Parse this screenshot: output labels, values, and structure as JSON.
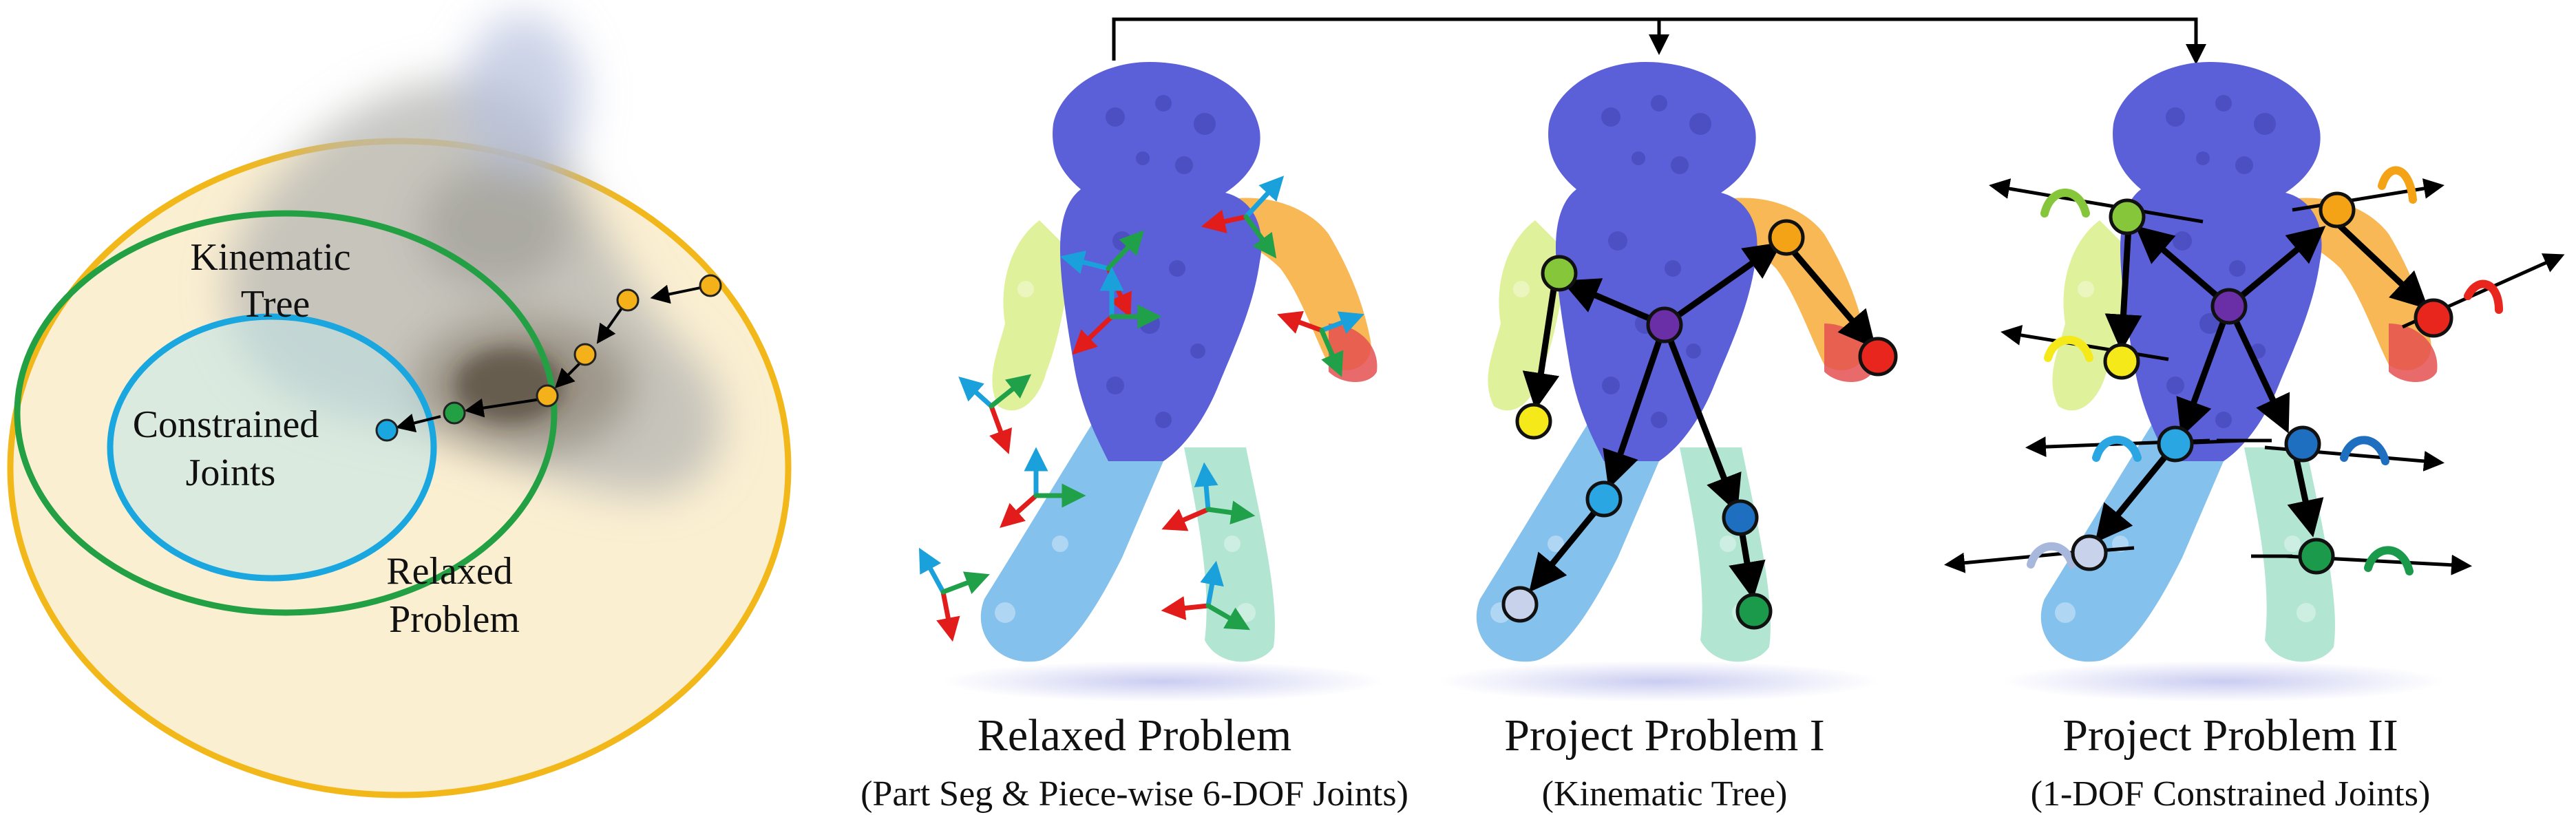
{
  "sets": {
    "kinematic_tree": [
      "Kinematic",
      "Tree"
    ],
    "constrained_joints": [
      "Constrained",
      "Joints"
    ],
    "relaxed_problem": [
      "Relaxed",
      "Problem"
    ]
  },
  "panels": [
    {
      "title": "Relaxed Problem",
      "subtitle": "(Part Seg & Piece-wise 6-DOF Joints)"
    },
    {
      "title": "Project Problem I",
      "subtitle": "(Kinematic Tree)"
    },
    {
      "title": "Project Problem II",
      "subtitle": "(1-DOF Constrained Joints)"
    }
  ],
  "colors": {
    "relaxed_set": "#f2b81a",
    "kinematic_set": "#23a043",
    "constrained_set": "#1aa6de",
    "body": "#5b5fd8",
    "joint_root": "#6a2fa6",
    "joint_orange": "#f5a316",
    "joint_red": "#e8261d",
    "joint_green": "#86c63a",
    "joint_yellow": "#f6e91a",
    "joint_cyan": "#2aa6e3",
    "joint_blue": "#1e6fbf",
    "joint_pale": "#c8d2ea",
    "joint_dark_green": "#1a9a4a",
    "axis_x": "#e21b1b",
    "axis_y": "#1aa1db",
    "axis_z": "#21a04a"
  }
}
